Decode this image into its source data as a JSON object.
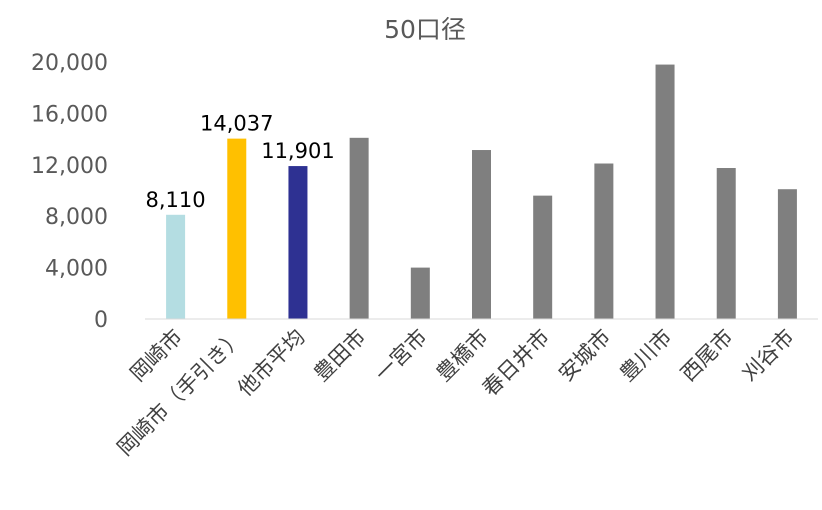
{
  "chart_data": {
    "type": "bar",
    "title": "50口径",
    "categories": [
      "岡崎市",
      "岡崎市（手引き）",
      "他市平均",
      "豊田市",
      "一宮市",
      "豊橋市",
      "春日井市",
      "安城市",
      "豊川市",
      "西尾市",
      "刈谷市"
    ],
    "values": [
      8110,
      14037,
      11901,
      14100,
      4000,
      13150,
      9600,
      12100,
      19800,
      11750,
      10100
    ],
    "data_labels": [
      "8,110",
      "14,037",
      "11,901",
      null,
      null,
      null,
      null,
      null,
      null,
      null,
      null
    ],
    "colors": [
      "#b4dde2",
      "#ffc000",
      "#2e3192",
      "#7f7f7f",
      "#7f7f7f",
      "#7f7f7f",
      "#7f7f7f",
      "#7f7f7f",
      "#7f7f7f",
      "#7f7f7f",
      "#7f7f7f"
    ],
    "yticks": [
      0,
      4000,
      8000,
      12000,
      16000,
      20000
    ],
    "ytick_labels": [
      "0",
      "4,000",
      "8,000",
      "12,000",
      "16,000",
      "20,000"
    ],
    "ylim": [
      0,
      20000
    ],
    "xlabel": "",
    "ylabel": "",
    "grid": false,
    "legend": "none"
  }
}
